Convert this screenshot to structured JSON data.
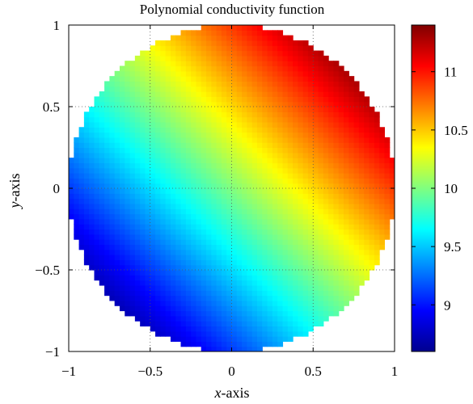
{
  "chart_data": {
    "type": "heatmap",
    "title": "Polynomial conductivity function",
    "xlabel_var": "x",
    "xlabel_rest": "-axis",
    "ylabel_var": "y",
    "ylabel_rest": "-axis",
    "xlim": [
      -1,
      1
    ],
    "ylim": [
      -1,
      1
    ],
    "x_ticks": [
      -1,
      -0.5,
      0,
      0.5,
      1
    ],
    "x_tick_labels": [
      "−1",
      "−0.5",
      "0",
      "0.5",
      "1"
    ],
    "y_ticks": [
      -1,
      -0.5,
      0,
      0.5,
      1
    ],
    "y_tick_labels": [
      "−1",
      "−0.5",
      "0",
      "0.5",
      "1"
    ],
    "domain": "unit disk",
    "function": {
      "form": "linear",
      "constant": 10.0,
      "coef_x": 0.9,
      "coef_y": 0.9
    },
    "colorbar": {
      "range": [
        8.6,
        11.4
      ],
      "ticks": [
        9,
        9.5,
        10,
        10.5,
        11
      ],
      "tick_labels": [
        "9",
        "9.5",
        "10",
        "10.5",
        "11"
      ],
      "colormap": "jet"
    },
    "grid": "dotted",
    "colors": {
      "jet": [
        "#00008f",
        "#0000ff",
        "#00ffff",
        "#ffff00",
        "#ff0000",
        "#800000"
      ]
    }
  }
}
